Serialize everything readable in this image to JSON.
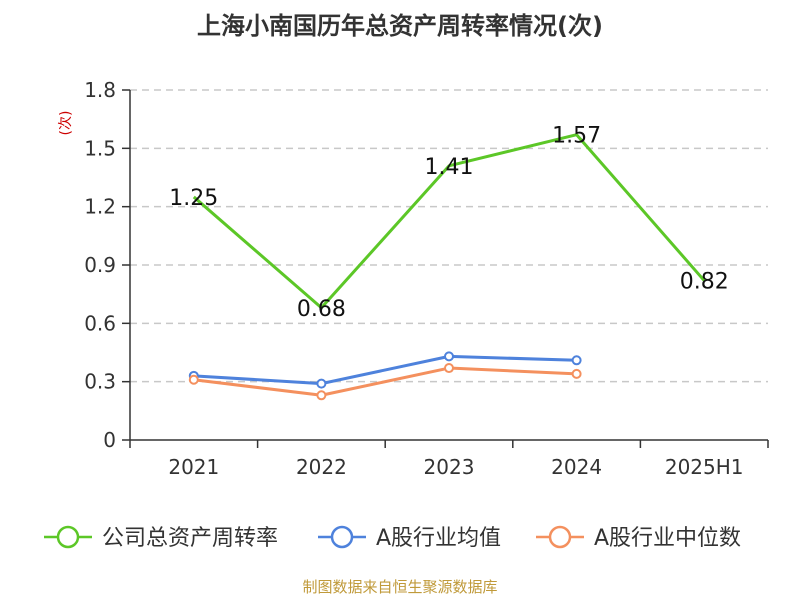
{
  "chart_data": {
    "type": "line",
    "title": "上海小南国历年总资产周转率情况(次)",
    "ylabel": "(次)",
    "ylim": [
      0,
      1.8
    ],
    "yticks": [
      "0",
      "0.3",
      "0.6",
      "0.9",
      "1.2",
      "1.5",
      "1.8"
    ],
    "categories": [
      "2021",
      "2022",
      "2023",
      "2024",
      "2025H1"
    ],
    "series": [
      {
        "name": "公司总资产周转率",
        "color": "#5cc727",
        "values": [
          1.25,
          0.68,
          1.41,
          1.57,
          0.82
        ],
        "labels": [
          "1.25",
          "0.68",
          "1.41",
          "1.57",
          "0.82"
        ],
        "markers": false
      },
      {
        "name": "A股行业均值",
        "color": "#4e82dc",
        "values": [
          0.33,
          0.29,
          0.43,
          0.41,
          null
        ],
        "markers": true
      },
      {
        "name": "A股行业中位数",
        "color": "#f4905e",
        "values": [
          0.31,
          0.23,
          0.37,
          0.34,
          null
        ],
        "markers": true
      }
    ],
    "grid": true,
    "legend": "bottom",
    "source": "制图数据来自恒生聚源数据库"
  }
}
